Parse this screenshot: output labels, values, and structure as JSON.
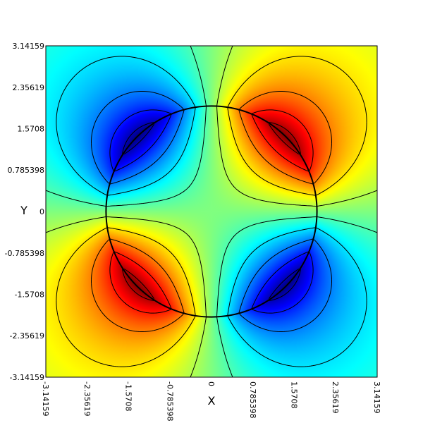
{
  "chart_data": {
    "type": "heatmap",
    "title": "",
    "xlabel": "X",
    "ylabel": "Y",
    "xlim": [
      -3.14159,
      3.14159
    ],
    "ylim": [
      -3.14159,
      3.14159
    ],
    "xticks": [
      {
        "value": -3.14159,
        "label": "-3.14159"
      },
      {
        "value": -2.35619,
        "label": "-2.35619"
      },
      {
        "value": -1.5708,
        "label": "-1.5708"
      },
      {
        "value": -0.785398,
        "label": "-0.785398"
      },
      {
        "value": 0,
        "label": "0"
      },
      {
        "value": 0.785398,
        "label": "0.785398"
      },
      {
        "value": 1.5708,
        "label": "1.5708"
      },
      {
        "value": 2.35619,
        "label": "2.35619"
      },
      {
        "value": 3.14159,
        "label": "3.14159"
      }
    ],
    "yticks": [
      {
        "value": 3.14159,
        "label": "3.14159"
      },
      {
        "value": 2.35619,
        "label": "2.35619"
      },
      {
        "value": 1.5708,
        "label": "1.5708"
      },
      {
        "value": 0.785398,
        "label": "0.785398"
      },
      {
        "value": 0,
        "label": "0"
      },
      {
        "value": -0.785398,
        "label": "-0.785398"
      },
      {
        "value": -1.5708,
        "label": "-1.5708"
      },
      {
        "value": -2.35619,
        "label": "-2.35619"
      },
      {
        "value": -3.14159,
        "label": "-3.14159"
      }
    ],
    "field": "u = r^2 sin(2 theta) / 4 inside circle of radius 2; (4/r^2) sin(2 theta) outside",
    "circle_radius": 2,
    "colormap": "jet",
    "color_range": [
      -1.0,
      1.0
    ],
    "contour_levels": [
      -0.9,
      -0.7,
      -0.5,
      -0.3,
      -0.1,
      0.1,
      0.3,
      0.5,
      0.7,
      0.9
    ],
    "grid": false,
    "legend": "none"
  }
}
